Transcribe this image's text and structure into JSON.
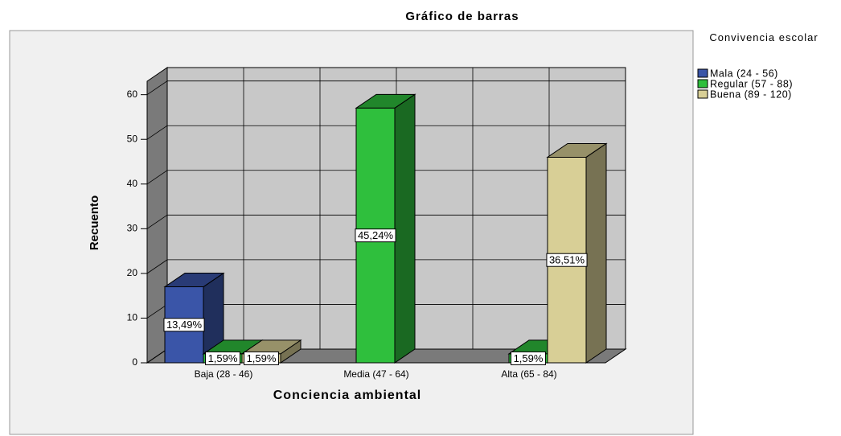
{
  "chart_data": {
    "type": "bar",
    "title": "Gráfico de barras",
    "x_label": "Conciencia ambiental",
    "y_label": "Recuento",
    "legend_title": "Convivencia escolar",
    "categories": [
      "Baja (28 - 46)",
      "Media (47 - 64)",
      "Alta (65 - 84)"
    ],
    "series": [
      {
        "name": "Mala (24 - 56)",
        "color": "#3a55a8",
        "values": [
          17,
          null,
          null
        ],
        "value_labels": [
          "13,49%",
          null,
          null
        ]
      },
      {
        "name": "Regular (57 - 88)",
        "color": "#2fbf3d",
        "values": [
          2,
          57,
          2
        ],
        "value_labels": [
          "1,59%",
          "45,24%",
          "1,59%"
        ]
      },
      {
        "name": "Buena (89 - 120)",
        "color": "#d8cf96",
        "values": [
          2,
          null,
          46
        ],
        "value_labels": [
          "1,59%",
          null,
          "36,51%"
        ]
      }
    ],
    "ylim": [
      0,
      63
    ],
    "yticks": [
      0,
      10,
      20,
      30,
      40,
      50,
      60
    ],
    "grid": true,
    "legend": "right"
  }
}
